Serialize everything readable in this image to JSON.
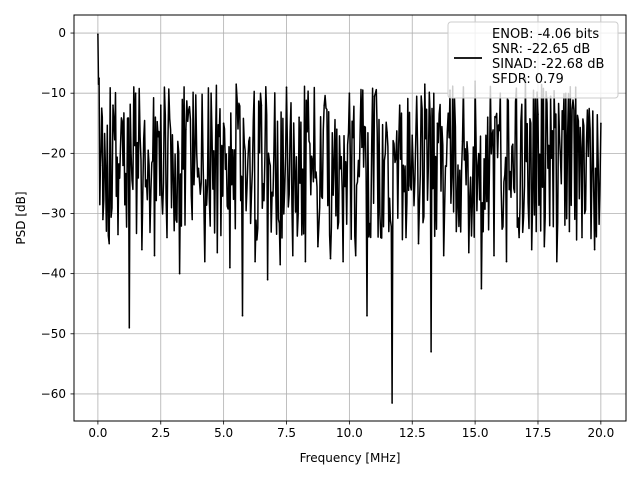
{
  "chart_data": {
    "type": "line",
    "title": "",
    "xlabel": "Frequency [MHz]",
    "ylabel": "PSD [dB]",
    "xlim": [
      -0.95,
      21.0
    ],
    "ylim": [
      -64.5,
      3.0
    ],
    "xticks": [
      0.0,
      2.5,
      5.0,
      7.5,
      10.0,
      12.5,
      15.0,
      17.5,
      20.0
    ],
    "xtick_labels": [
      "0.0",
      "2.5",
      "5.0",
      "7.5",
      "10.0",
      "12.5",
      "15.0",
      "17.5",
      "20.0"
    ],
    "yticks": [
      0,
      -10,
      -20,
      -30,
      -40,
      -50,
      -60
    ],
    "ytick_labels": [
      "0",
      "−10",
      "−20",
      "−30",
      "−40",
      "−50",
      "−60"
    ],
    "grid": true,
    "legend_position": "top-right",
    "series": [
      {
        "name": "ENOB: -4.06 bits\nSNR: -22.65 dB\nSINAD: -22.68 dB\nSFDR: 0.79",
        "color": "#000000",
        "x": [
          0.0,
          0.05,
          0.1,
          0.15,
          0.2,
          0.3,
          0.45,
          0.6,
          0.8,
          1.0,
          1.25,
          1.5,
          1.75,
          2.0,
          2.25,
          2.5,
          2.75,
          3.0,
          3.25,
          3.5,
          3.75,
          4.0,
          4.25,
          4.5,
          4.75,
          5.0,
          5.25,
          5.5,
          5.75,
          6.0,
          6.25,
          6.5,
          6.75,
          7.0,
          7.25,
          7.5,
          7.75,
          8.0,
          8.25,
          8.5,
          8.75,
          9.0,
          9.25,
          9.5,
          9.75,
          10.0,
          10.25,
          10.5,
          10.7,
          11.0,
          11.25,
          11.5,
          11.7,
          12.0,
          12.25,
          12.5,
          12.75,
          13.0,
          13.25,
          13.5,
          13.75,
          14.0,
          14.25,
          14.5,
          14.75,
          15.0,
          15.25,
          15.5,
          15.75,
          16.0,
          16.25,
          16.5,
          16.75,
          17.0,
          17.25,
          17.5,
          17.75,
          18.0,
          18.25,
          18.5,
          18.75,
          19.0,
          19.25,
          19.5,
          19.75,
          20.0
        ],
        "y": [
          -0.2,
          -7.5,
          -22.0,
          -12.5,
          -31.0,
          -22.0,
          -35.0,
          -12.0,
          -33.5,
          -22.0,
          -49.0,
          -10.0,
          -36.0,
          -19.5,
          -37.0,
          -12.0,
          -34.0,
          -24.0,
          -40.0,
          -16.0,
          -31.0,
          -22.5,
          -38.0,
          -10.0,
          -36.5,
          -15.0,
          -39.0,
          -8.5,
          -47.0,
          -18.0,
          -38.0,
          -12.0,
          -41.0,
          -20.0,
          -38.5,
          -9.0,
          -37.0,
          -14.0,
          -38.0,
          -20.5,
          -35.5,
          -12.0,
          -37.5,
          -16.0,
          -38.0,
          -10.0,
          -37.0,
          -19.0,
          -47.0,
          -10.5,
          -34.0,
          -16.5,
          -61.5,
          -12.0,
          -34.0,
          -17.0,
          -35.0,
          -8.5,
          -53.0,
          -15.0,
          -37.0,
          -9.5,
          -33.0,
          -18.0,
          -36.5,
          -8.0,
          -42.5,
          -14.0,
          -37.0,
          -10.0,
          -38.0,
          -18.5,
          -34.0,
          -7.5,
          -36.0,
          -13.5,
          -35.5,
          -10.5,
          -38.0,
          -16.0,
          -33.0,
          -9.0,
          -34.0,
          -20.5,
          -36.0,
          -15.0
        ]
      }
    ]
  }
}
